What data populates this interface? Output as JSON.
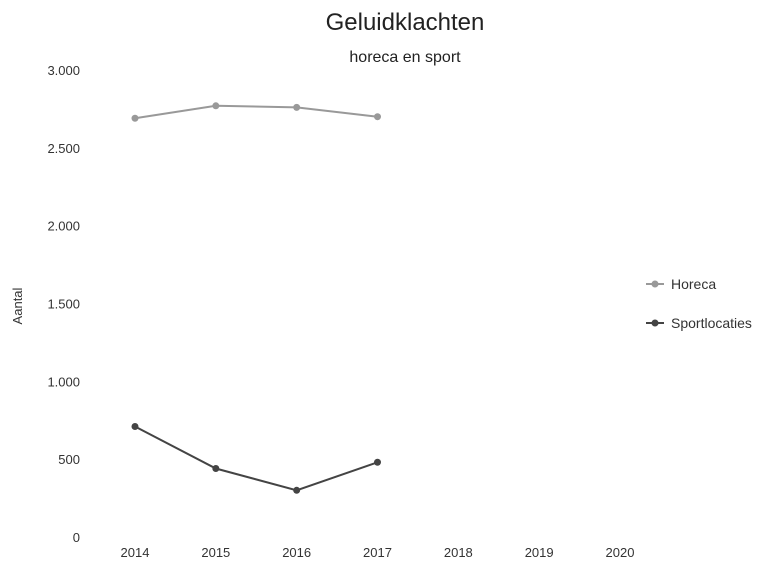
{
  "chart_data": {
    "type": "line",
    "title": "Geluidklachten",
    "subtitle": "horeca en sport",
    "ylabel": "Aantal",
    "xlabel": "",
    "x": [
      "2014",
      "2015",
      "2016",
      "2017",
      "2018",
      "2019",
      "2020"
    ],
    "ylim": [
      0,
      3000
    ],
    "yticks": [
      0,
      500,
      1000,
      1500,
      2000,
      2500,
      3000
    ],
    "ytick_labels": [
      "0",
      "500",
      "1.000",
      "1.500",
      "2.000",
      "2.500",
      "3.000"
    ],
    "grid": false,
    "legend_position": "right",
    "series": [
      {
        "name": "Horeca",
        "color": "#999999",
        "values": [
          2690,
          2770,
          2760,
          2700,
          null,
          null,
          null
        ]
      },
      {
        "name": "Sportlocaties",
        "color": "#444444",
        "values": [
          710,
          440,
          300,
          480,
          null,
          null,
          null
        ]
      }
    ]
  }
}
